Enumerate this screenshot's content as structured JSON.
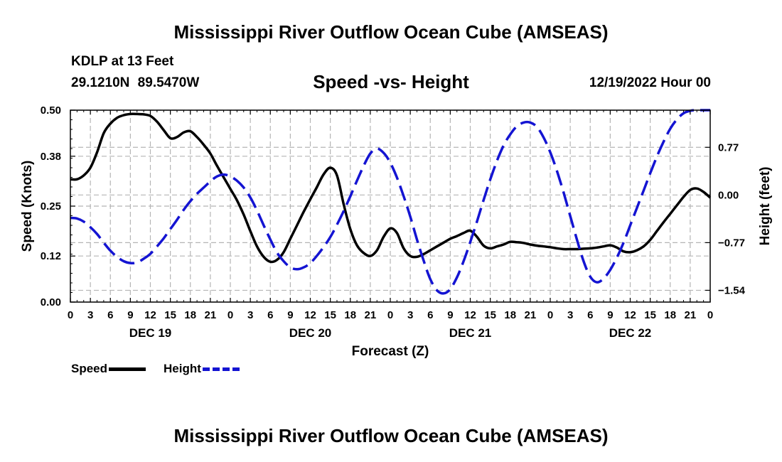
{
  "page_title": "Mississippi River Outflow Ocean Cube (AMSEAS)",
  "footer_title": "Mississippi River Outflow Ocean Cube (AMSEAS)",
  "station": {
    "name": "KDLP at 13 Feet",
    "coords": "29.1210N  89.5470W"
  },
  "subtitle": "Speed -vs- Height",
  "run_time": "12/19/2022 Hour 00",
  "chart_data": {
    "type": "line",
    "title": "Speed -vs- Height",
    "xlabel": "Forecast (Z)",
    "ylabel": "Speed (Knots)",
    "y2label": "Height (feet)",
    "x_range_hours": [
      0,
      96
    ],
    "x_ticks": [
      "0",
      "3",
      "6",
      "9",
      "12",
      "15",
      "18",
      "21",
      "0",
      "3",
      "6",
      "9",
      "12",
      "15",
      "18",
      "21",
      "0",
      "3",
      "6",
      "9",
      "12",
      "15",
      "18",
      "21",
      "0",
      "3",
      "6",
      "9",
      "12",
      "15",
      "18",
      "21",
      "0"
    ],
    "day_labels": [
      {
        "label": "DEC 19",
        "hour": 12
      },
      {
        "label": "DEC 20",
        "hour": 36
      },
      {
        "label": "DEC 21",
        "hour": 60
      },
      {
        "label": "DEC 22",
        "hour": 84
      }
    ],
    "ylim": [
      0,
      0.5
    ],
    "y_ticks": [
      0.0,
      0.12,
      0.25,
      0.38,
      0.5
    ],
    "y_tick_labels": [
      "0.00",
      "0.12",
      "0.25",
      "0.38",
      "0.50"
    ],
    "y2lim": [
      -1.73,
      1.37
    ],
    "y2_ticks": [
      -1.54,
      -0.77,
      0.0,
      0.77
    ],
    "y2_tick_labels": [
      "−1.54",
      "−0.77",
      "0.00",
      "0.77"
    ],
    "grid": true,
    "series": [
      {
        "name": "Speed",
        "axis": "left",
        "color": "#000000",
        "style": "solid",
        "x": [
          0,
          1,
          2,
          3,
          4,
          5,
          6,
          7,
          8,
          9,
          10,
          11,
          12,
          13,
          14,
          15,
          16,
          17,
          18,
          19,
          20,
          21,
          22,
          23,
          24,
          25,
          26,
          27,
          28,
          29,
          30,
          31,
          32,
          33,
          34,
          35,
          36,
          37,
          38,
          39,
          40,
          41,
          42,
          43,
          44,
          45,
          46,
          47,
          48,
          49,
          50,
          51,
          52,
          53,
          54,
          55,
          56,
          57,
          58,
          59,
          60,
          61,
          62,
          63,
          64,
          65,
          66,
          67,
          68,
          69,
          70,
          71,
          72,
          73,
          74,
          75,
          76,
          77,
          78,
          79,
          80,
          81,
          82,
          83,
          84,
          85,
          86,
          87,
          88,
          89,
          90,
          91,
          92,
          93,
          94,
          95,
          96
        ],
        "values": [
          0.32,
          0.32,
          0.33,
          0.35,
          0.39,
          0.44,
          0.465,
          0.48,
          0.487,
          0.49,
          0.49,
          0.489,
          0.485,
          0.47,
          0.448,
          0.427,
          0.43,
          0.442,
          0.445,
          0.43,
          0.41,
          0.387,
          0.355,
          0.325,
          0.295,
          0.265,
          0.228,
          0.185,
          0.145,
          0.118,
          0.105,
          0.11,
          0.13,
          0.165,
          0.2,
          0.235,
          0.268,
          0.3,
          0.333,
          0.35,
          0.33,
          0.255,
          0.19,
          0.148,
          0.128,
          0.12,
          0.135,
          0.17,
          0.192,
          0.18,
          0.14,
          0.12,
          0.118,
          0.125,
          0.135,
          0.145,
          0.155,
          0.165,
          0.172,
          0.18,
          0.186,
          0.17,
          0.147,
          0.14,
          0.145,
          0.15,
          0.157,
          0.156,
          0.154,
          0.15,
          0.147,
          0.145,
          0.143,
          0.14,
          0.138,
          0.138,
          0.138,
          0.139,
          0.14,
          0.142,
          0.145,
          0.148,
          0.142,
          0.132,
          0.13,
          0.135,
          0.145,
          0.162,
          0.185,
          0.208,
          0.23,
          0.252,
          0.274,
          0.292,
          0.296,
          0.287,
          0.272
        ]
      },
      {
        "name": "Height",
        "axis": "right",
        "color": "#1414d2",
        "style": "dashed",
        "x": [
          0,
          1,
          2,
          3,
          4,
          5,
          6,
          7,
          8,
          9,
          10,
          11,
          12,
          13,
          14,
          15,
          16,
          17,
          18,
          19,
          20,
          21,
          22,
          23,
          24,
          25,
          26,
          27,
          28,
          29,
          30,
          31,
          32,
          33,
          34,
          35,
          36,
          37,
          38,
          39,
          40,
          41,
          42,
          43,
          44,
          45,
          46,
          47,
          48,
          49,
          50,
          51,
          52,
          53,
          54,
          55,
          56,
          57,
          58,
          59,
          60,
          61,
          62,
          63,
          64,
          65,
          66,
          67,
          68,
          69,
          70,
          71,
          72,
          73,
          74,
          75,
          76,
          77,
          78,
          79,
          80,
          81,
          82,
          83,
          84,
          85,
          86,
          87,
          88,
          89,
          90,
          91,
          92,
          93,
          94,
          95,
          96
        ],
        "values": [
          -0.37,
          -0.38,
          -0.43,
          -0.52,
          -0.63,
          -0.77,
          -0.9,
          -1.0,
          -1.07,
          -1.1,
          -1.09,
          -1.03,
          -0.95,
          -0.83,
          -0.7,
          -0.55,
          -0.4,
          -0.24,
          -0.1,
          0.02,
          0.12,
          0.22,
          0.3,
          0.33,
          0.3,
          0.23,
          0.12,
          -0.04,
          -0.25,
          -0.49,
          -0.72,
          -0.93,
          -1.07,
          -1.17,
          -1.2,
          -1.17,
          -1.1,
          -0.98,
          -0.84,
          -0.68,
          -0.48,
          -0.26,
          -0.02,
          0.23,
          0.47,
          0.67,
          0.75,
          0.68,
          0.52,
          0.28,
          -0.02,
          -0.35,
          -0.72,
          -1.06,
          -1.36,
          -1.54,
          -1.59,
          -1.52,
          -1.33,
          -1.07,
          -0.76,
          -0.43,
          -0.08,
          0.25,
          0.55,
          0.8,
          0.98,
          1.11,
          1.17,
          1.17,
          1.1,
          0.93,
          0.69,
          0.39,
          0.04,
          -0.34,
          -0.72,
          -1.07,
          -1.32,
          -1.41,
          -1.35,
          -1.21,
          -1.01,
          -0.77,
          -0.49,
          -0.21,
          0.07,
          0.35,
          0.62,
          0.86,
          1.07,
          1.22,
          1.32,
          1.36,
          1.37,
          1.37,
          1.37
        ]
      }
    ]
  },
  "legend": {
    "speed_label": "Speed",
    "height_label": "Height"
  }
}
